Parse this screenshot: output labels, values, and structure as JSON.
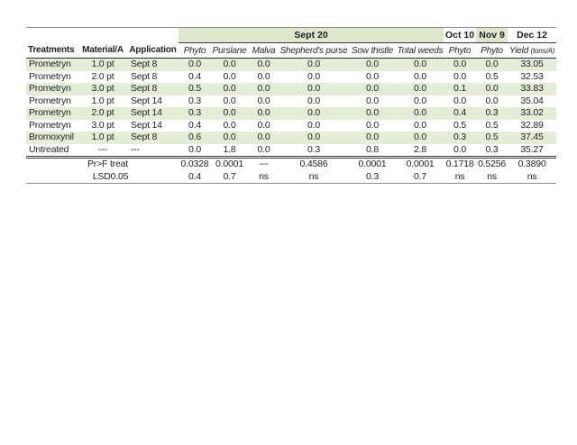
{
  "colors": {
    "band_green": "#dde7cd",
    "stripe_green": "#e3edd8",
    "rule_dark": "#3a3a3a",
    "rule_gray": "#8f8f8f",
    "text": "#1f1f1f"
  },
  "table": {
    "group": {
      "sept20": "Sept 20",
      "oct10": "Oct 10",
      "nov9": "Nov 9",
      "dec12": "Dec 12"
    },
    "columns": [
      "Treatments",
      "Material/A",
      "Application",
      "Phyto",
      "Purslane",
      "Malva",
      "Shepherd's purse",
      "Sow thistle",
      "Total weeds",
      "Phyto",
      "Phyto"
    ],
    "yield_header": {
      "label": "Yield",
      "unit": "(tons/A)"
    },
    "rows": [
      [
        "Prometryn",
        "1.0 pt",
        "Sept 8",
        "0.0",
        "0.0",
        "0.0",
        "0.0",
        "0.0",
        "0.0",
        "0.0",
        "0.0",
        "33.05"
      ],
      [
        "Prometryn",
        "2.0 pt",
        "Sept 8",
        "0.4",
        "0.0",
        "0.0",
        "0.0",
        "0.0",
        "0.0",
        "0.0",
        "0.5",
        "32.53"
      ],
      [
        "Prometryn",
        "3.0 pt",
        "Sept 8",
        "0.5",
        "0.0",
        "0.0",
        "0.0",
        "0.0",
        "0.0",
        "0.1",
        "0.0",
        "33.83"
      ],
      [
        "Prometryn",
        "1.0 pt",
        "Sept 14",
        "0.3",
        "0.0",
        "0.0",
        "0.0",
        "0.0",
        "0.0",
        "0.0",
        "0.0",
        "35.04"
      ],
      [
        "Prometryn",
        "2.0 pt",
        "Sept 14",
        "0.3",
        "0.0",
        "0.0",
        "0.0",
        "0.0",
        "0.0",
        "0.4",
        "0.3",
        "33.02"
      ],
      [
        "Prometryn",
        "3.0 pt",
        "Sept 14",
        "0.4",
        "0.0",
        "0.0",
        "0.0",
        "0.0",
        "0.0",
        "0.5",
        "0.5",
        "32.89"
      ],
      [
        "Bromoxynil",
        "1.0 pt",
        "Sept 8",
        "0.6",
        "0.0",
        "0.0",
        "0.0",
        "0.0",
        "0.0",
        "0.3",
        "0.5",
        "37.45"
      ],
      [
        "Untreated",
        "---",
        "---",
        "0.0",
        "1.8",
        "0.0",
        "0.3",
        "0.8",
        "2.8",
        "0.0",
        "0.3",
        "35.27"
      ]
    ],
    "stats": [
      {
        "label": "Pr>F treat",
        "values": [
          "0.0328",
          "0.0001",
          "---",
          "0.4586",
          "0.0001",
          "0.0001",
          "0.1718",
          "0.5256",
          "0.3890"
        ]
      },
      {
        "label": "LSD0.05",
        "values": [
          "0.4",
          "0.7",
          "ns",
          "ns",
          "0.3",
          "0.7",
          "ns",
          "ns",
          "ns"
        ]
      }
    ]
  }
}
